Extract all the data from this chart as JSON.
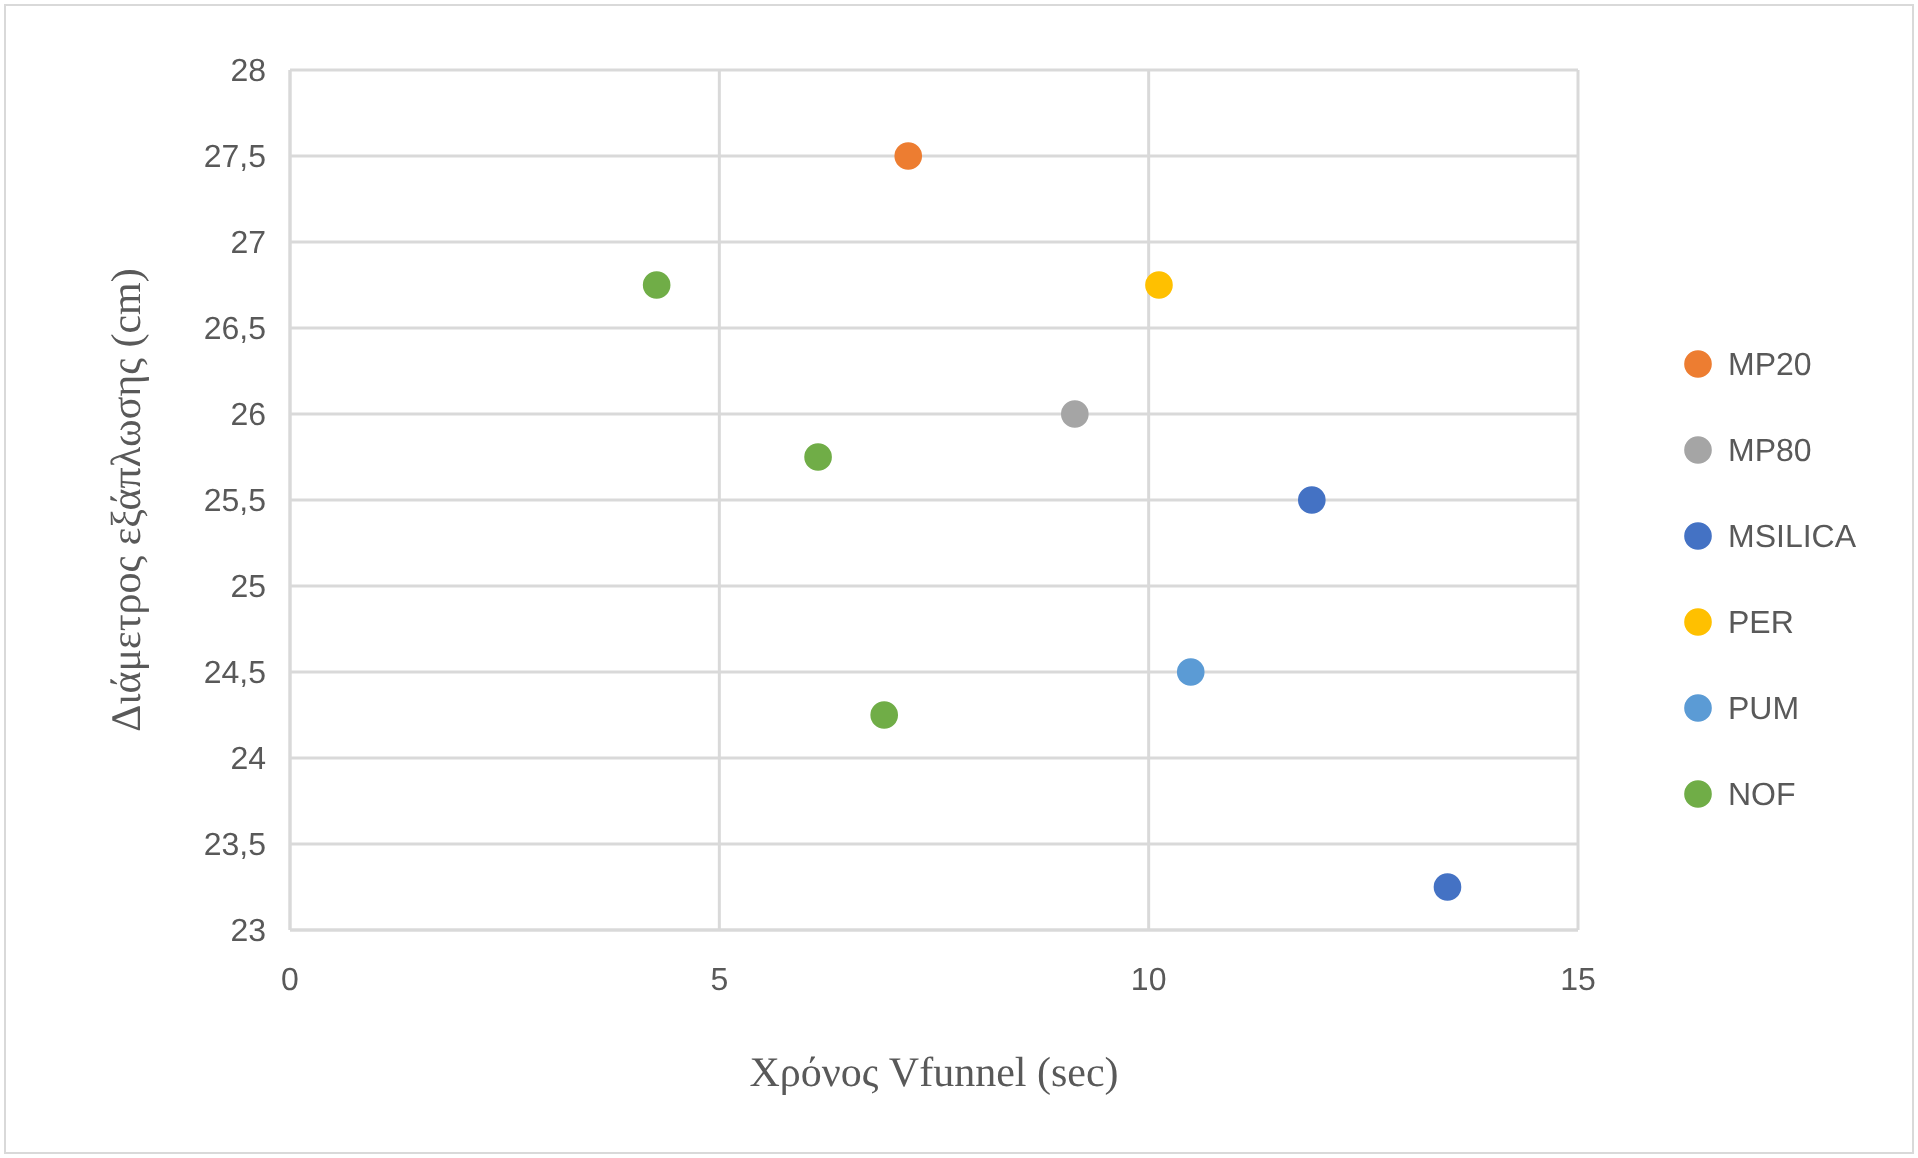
{
  "chart_data": {
    "type": "scatter",
    "xlabel": "Χρόνος Vfunnel (sec)",
    "ylabel": "Διάμετρος εξάπλωσης (cm)",
    "xlim": [
      0,
      15
    ],
    "xticks": [
      0,
      5,
      10,
      15
    ],
    "ylim": [
      23,
      28
    ],
    "yticks": [
      23,
      {
        "value": 23.5,
        "label": "23,5"
      },
      24,
      {
        "value": 24.5,
        "label": "24,5"
      },
      25,
      {
        "value": 25.5,
        "label": "25,5"
      },
      26,
      {
        "value": 26.5,
        "label": "26,5"
      },
      27,
      {
        "value": 27.5,
        "label": "27,5"
      },
      28
    ],
    "grid": true,
    "legend": "right",
    "marker": "circle",
    "series": [
      {
        "name": "MP20",
        "color": "#ed7d31",
        "x": [
          7.2
        ],
        "values": [
          27.5
        ]
      },
      {
        "name": "MP80",
        "color": "#a5a5a5",
        "x": [
          9.14
        ],
        "values": [
          26
        ]
      },
      {
        "name": "MSILICA",
        "color": "#4472c4",
        "x": [
          11.9,
          13.48
        ],
        "values": [
          25.5,
          23.25
        ]
      },
      {
        "name": "PER",
        "color": "#ffc000",
        "x": [
          10.12
        ],
        "values": [
          26.75
        ]
      },
      {
        "name": "PUM",
        "color": "#5b9bd5",
        "x": [
          10.49
        ],
        "values": [
          24.5
        ]
      },
      {
        "name": "NOF",
        "color": "#70ad47",
        "x": [
          4.27,
          6.15,
          6.92
        ],
        "values": [
          26.75,
          25.75,
          24.25
        ]
      }
    ]
  }
}
